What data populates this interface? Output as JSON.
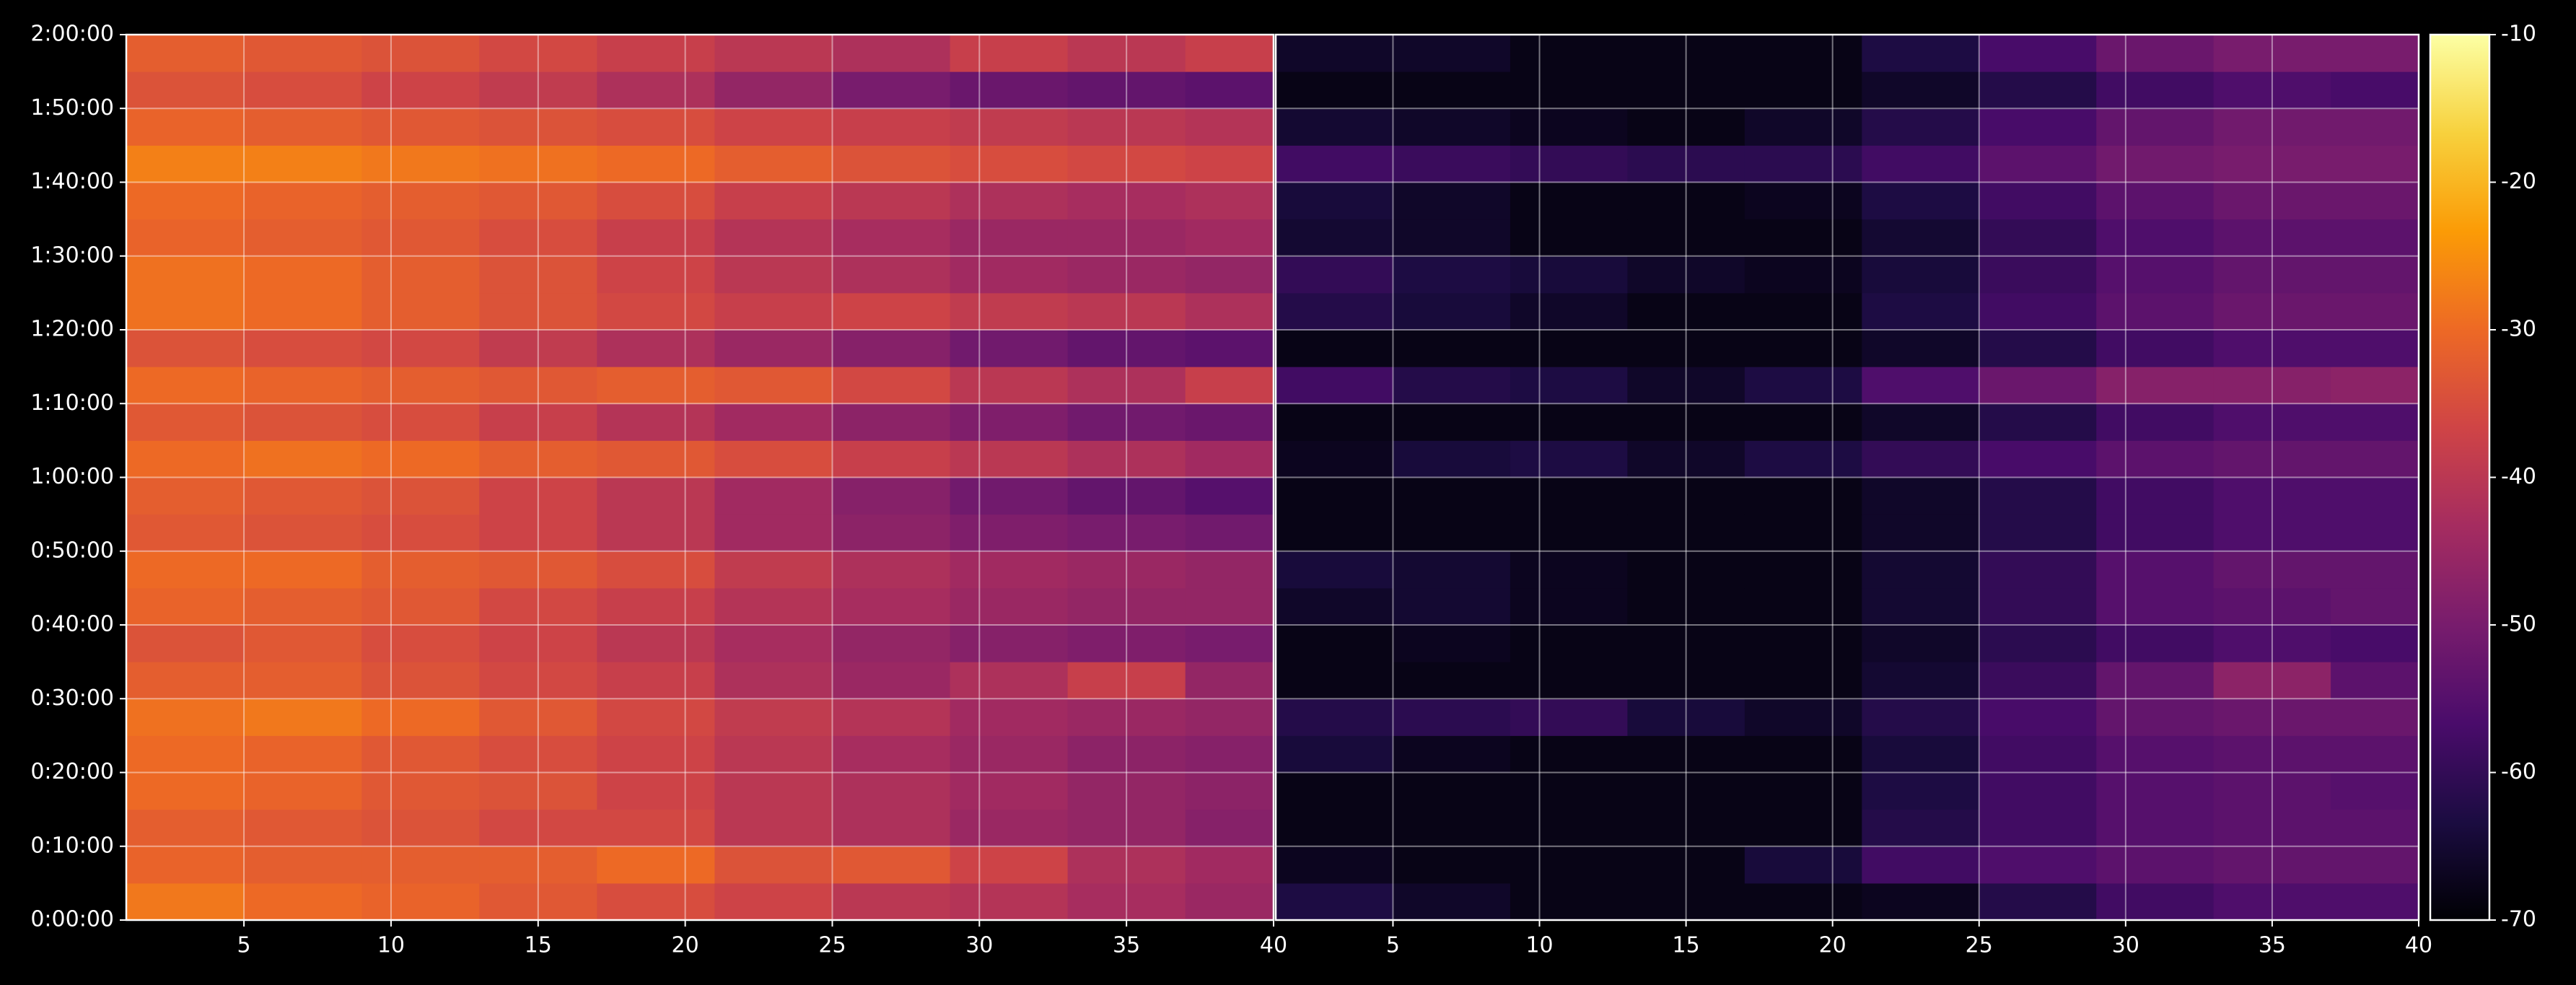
{
  "chart_data": {
    "type": "heatmap",
    "colormap": "inferno",
    "grid": true,
    "xlim": [
      1,
      40
    ],
    "xticks": [
      5,
      10,
      15,
      20,
      25,
      30,
      35,
      40
    ],
    "ylim": [
      0,
      7200
    ],
    "yticks": [
      {
        "value": 0,
        "label": "0:00:00"
      },
      {
        "value": 600,
        "label": "0:10:00"
      },
      {
        "value": 1200,
        "label": "0:20:00"
      },
      {
        "value": 1800,
        "label": "0:30:00"
      },
      {
        "value": 2400,
        "label": "0:40:00"
      },
      {
        "value": 3000,
        "label": "0:50:00"
      },
      {
        "value": 3600,
        "label": "1:00:00"
      },
      {
        "value": 4200,
        "label": "1:10:00"
      },
      {
        "value": 4800,
        "label": "1:20:00"
      },
      {
        "value": 5400,
        "label": "1:30:00"
      },
      {
        "value": 6000,
        "label": "1:40:00"
      },
      {
        "value": 6600,
        "label": "1:50:00"
      },
      {
        "value": 7200,
        "label": "2:00:00"
      }
    ],
    "x_edges": [
      1,
      5,
      9,
      13,
      17,
      21,
      25,
      29,
      33,
      37,
      40
    ],
    "y_edges": [
      0,
      300,
      600,
      900,
      1200,
      1500,
      1800,
      2100,
      2400,
      2700,
      3000,
      3300,
      3600,
      3900,
      4200,
      4500,
      4800,
      5100,
      5400,
      5700,
      6000,
      6300,
      6600,
      6900,
      7200
    ],
    "panels": [
      {
        "values": [
          [
            -28,
            -30,
            -31,
            -33,
            -35,
            -37,
            -40,
            -41,
            -43,
            -45
          ],
          [
            -31,
            -32,
            -32,
            -32,
            -30,
            -34,
            -33,
            -37,
            -42,
            -44
          ],
          [
            -32,
            -33,
            -34,
            -36,
            -36,
            -40,
            -42,
            -45,
            -46,
            -48
          ],
          [
            -30,
            -31,
            -33,
            -34,
            -37,
            -40,
            -42,
            -44,
            -46,
            -47
          ],
          [
            -30,
            -31,
            -33,
            -35,
            -37,
            -40,
            -43,
            -45,
            -47,
            -48
          ],
          [
            -29,
            -28,
            -30,
            -33,
            -36,
            -39,
            -41,
            -44,
            -45,
            -46
          ],
          [
            -32,
            -32,
            -34,
            -36,
            -38,
            -42,
            -45,
            -42,
            -38,
            -46
          ],
          [
            -34,
            -33,
            -35,
            -37,
            -40,
            -43,
            -46,
            -48,
            -49,
            -50
          ],
          [
            -31,
            -32,
            -33,
            -36,
            -38,
            -41,
            -43,
            -45,
            -46,
            -46
          ],
          [
            -30,
            -30,
            -32,
            -33,
            -35,
            -39,
            -42,
            -44,
            -45,
            -46
          ],
          [
            -33,
            -34,
            -35,
            -37,
            -40,
            -44,
            -47,
            -49,
            -50,
            -51
          ],
          [
            -32,
            -33,
            -34,
            -37,
            -40,
            -44,
            -48,
            -51,
            -53,
            -55
          ],
          [
            -30,
            -29,
            -30,
            -32,
            -33,
            -35,
            -38,
            -40,
            -42,
            -44
          ],
          [
            -33,
            -34,
            -35,
            -38,
            -41,
            -44,
            -47,
            -49,
            -51,
            -52
          ],
          [
            -30,
            -31,
            -32,
            -33,
            -32,
            -33,
            -36,
            -40,
            -42,
            -38
          ],
          [
            -34,
            -35,
            -36,
            -39,
            -42,
            -45,
            -48,
            -51,
            -53,
            -54
          ],
          [
            -29,
            -30,
            -32,
            -34,
            -36,
            -38,
            -37,
            -39,
            -40,
            -42
          ],
          [
            -29,
            -30,
            -32,
            -34,
            -37,
            -40,
            -42,
            -44,
            -45,
            -46
          ],
          [
            -31,
            -32,
            -33,
            -35,
            -38,
            -41,
            -43,
            -45,
            -45,
            -44
          ],
          [
            -30,
            -31,
            -32,
            -33,
            -35,
            -38,
            -40,
            -42,
            -43,
            -42
          ],
          [
            -27,
            -27,
            -28,
            -29,
            -30,
            -32,
            -34,
            -35,
            -36,
            -37
          ],
          [
            -31,
            -32,
            -33,
            -34,
            -35,
            -37,
            -38,
            -39,
            -40,
            -41
          ],
          [
            -34,
            -35,
            -37,
            -39,
            -42,
            -46,
            -50,
            -52,
            -53,
            -54
          ],
          [
            -32,
            -33,
            -34,
            -36,
            -38,
            -40,
            -42,
            -38,
            -40,
            -38
          ]
        ]
      },
      {
        "values": [
          [
            -63,
            -66,
            -68,
            -68,
            -68,
            -67,
            -62,
            -58,
            -56,
            -56
          ],
          [
            -67,
            -68,
            -68,
            -68,
            -64,
            -58,
            -56,
            -54,
            -53,
            -53
          ],
          [
            -68,
            -68,
            -68,
            -68,
            -68,
            -62,
            -58,
            -55,
            -54,
            -54
          ],
          [
            -68,
            -68,
            -68,
            -68,
            -68,
            -63,
            -58,
            -55,
            -54,
            -55
          ],
          [
            -64,
            -67,
            -68,
            -68,
            -68,
            -64,
            -58,
            -55,
            -54,
            -54
          ],
          [
            -62,
            -61,
            -60,
            -64,
            -66,
            -62,
            -57,
            -53,
            -52,
            -52
          ],
          [
            -68,
            -68,
            -68,
            -68,
            -68,
            -65,
            -59,
            -53,
            -47,
            -54
          ],
          [
            -68,
            -67,
            -68,
            -68,
            -68,
            -66,
            -61,
            -58,
            -56,
            -57
          ],
          [
            -66,
            -65,
            -67,
            -68,
            -68,
            -65,
            -60,
            -55,
            -54,
            -53
          ],
          [
            -64,
            -65,
            -67,
            -68,
            -68,
            -65,
            -60,
            -55,
            -53,
            -53
          ],
          [
            -68,
            -68,
            -68,
            -68,
            -68,
            -66,
            -62,
            -58,
            -56,
            -56
          ],
          [
            -68,
            -68,
            -68,
            -68,
            -68,
            -66,
            -62,
            -58,
            -56,
            -56
          ],
          [
            -67,
            -64,
            -63,
            -66,
            -63,
            -60,
            -57,
            -54,
            -53,
            -53
          ],
          [
            -68,
            -68,
            -68,
            -68,
            -68,
            -66,
            -62,
            -58,
            -56,
            -56
          ],
          [
            -58,
            -62,
            -63,
            -66,
            -63,
            -56,
            -52,
            -48,
            -48,
            -47
          ],
          [
            -68,
            -68,
            -68,
            -68,
            -68,
            -66,
            -62,
            -58,
            -56,
            -56
          ],
          [
            -62,
            -64,
            -66,
            -68,
            -68,
            -63,
            -58,
            -54,
            -52,
            -52
          ],
          [
            -60,
            -63,
            -64,
            -66,
            -67,
            -64,
            -59,
            -55,
            -53,
            -53
          ],
          [
            -65,
            -66,
            -68,
            -68,
            -68,
            -65,
            -60,
            -56,
            -54,
            -54
          ],
          [
            -64,
            -66,
            -68,
            -68,
            -67,
            -63,
            -58,
            -54,
            -52,
            -52
          ],
          [
            -58,
            -59,
            -60,
            -61,
            -61,
            -58,
            -54,
            -51,
            -50,
            -50
          ],
          [
            -65,
            -66,
            -67,
            -68,
            -66,
            -62,
            -57,
            -53,
            -51,
            -51
          ],
          [
            -68,
            -68,
            -68,
            -68,
            -68,
            -66,
            -62,
            -58,
            -56,
            -57
          ],
          [
            -66,
            -66,
            -68,
            -68,
            -68,
            -63,
            -57,
            -52,
            -50,
            -50
          ]
        ]
      }
    ],
    "colorbar": {
      "lim": [
        -70,
        -10
      ],
      "ticks": [
        -70,
        -60,
        -50,
        -40,
        -30,
        -20,
        -10
      ]
    }
  }
}
